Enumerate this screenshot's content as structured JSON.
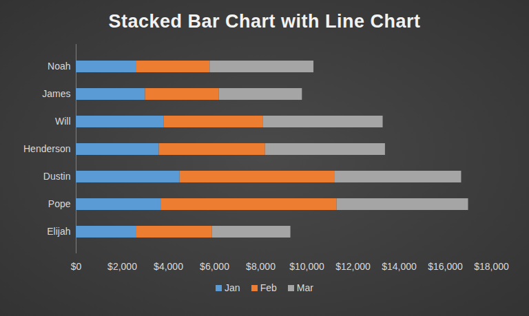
{
  "chart_data": {
    "type": "bar",
    "title": "Stacked Bar Chart with Line Chart",
    "orientation": "horizontal",
    "stacked": true,
    "grid": false,
    "legend": "bottom",
    "categories": [
      "Noah",
      "James",
      "Will",
      "Henderson",
      "Dustin",
      "Pope",
      "Elijah"
    ],
    "series": [
      {
        "name": "Jan",
        "color": "#5b9bd5",
        "values": [
          2600,
          3000,
          3800,
          3600,
          4500,
          3700,
          2600
        ]
      },
      {
        "name": "Feb",
        "color": "#ed7d31",
        "values": [
          3200,
          3200,
          4300,
          4600,
          6700,
          7600,
          3300
        ]
      },
      {
        "name": "Mar",
        "color": "#a5a5a5",
        "values": [
          4500,
          3600,
          5200,
          5200,
          5500,
          5700,
          3400
        ]
      }
    ],
    "xlim": [
      0,
      18000
    ],
    "xticks": [
      {
        "value": 0,
        "label": "$0"
      },
      {
        "value": 2000,
        "label": "$2,000"
      },
      {
        "value": 4000,
        "label": "$4,000"
      },
      {
        "value": 6000,
        "label": "$6,000"
      },
      {
        "value": 8000,
        "label": "$8,000"
      },
      {
        "value": 10000,
        "label": "$10,000"
      },
      {
        "value": 12000,
        "label": "$12,000"
      },
      {
        "value": 14000,
        "label": "$14,000"
      },
      {
        "value": 16000,
        "label": "$16,000"
      },
      {
        "value": 18000,
        "label": "$18,000"
      }
    ]
  }
}
